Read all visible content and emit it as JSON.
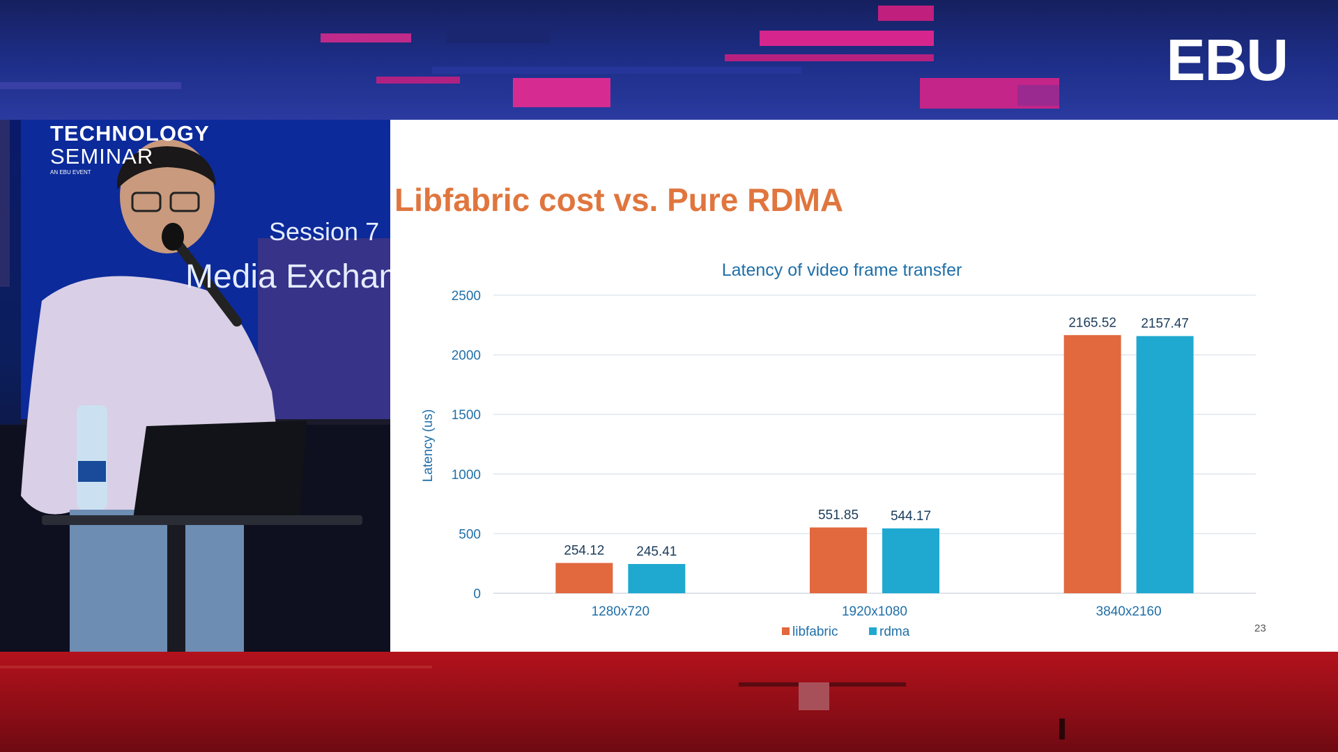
{
  "brand": {
    "logo": "EBU"
  },
  "video": {
    "seminar_line1": "TECHNOLOGY",
    "seminar_line2": "SEMINAR",
    "seminar_line3": "AN EBU EVENT",
    "session": "Session 7",
    "session_subtitle": "Media Exchange"
  },
  "slide": {
    "title": "Libfabric cost vs. Pure RDMA",
    "page_number": "23"
  },
  "colors": {
    "title": "#e0763e",
    "libfabric": "#e2683e",
    "rdma": "#1fa9d0",
    "axis_text": "#1f6fa8"
  },
  "chart_data": {
    "type": "bar",
    "title": "Latency of video frame transfer",
    "ylabel": "Latency (us)",
    "xlabel": "",
    "categories": [
      "1280x720",
      "1920x1080",
      "3840x2160"
    ],
    "series": [
      {
        "name": "libfabric",
        "values": [
          254.12,
          551.85,
          2165.52
        ],
        "labels": [
          "254.12",
          "551.85",
          "2165.52"
        ]
      },
      {
        "name": "rdma",
        "values": [
          245.41,
          544.17,
          2157.47
        ],
        "labels": [
          "245.41",
          "544.17",
          "2157.47"
        ]
      }
    ],
    "ylim": [
      0,
      2500
    ],
    "yticks": [
      "0",
      "500",
      "1000",
      "1500",
      "2000",
      "2500"
    ],
    "grid": true,
    "legend": "bottom"
  }
}
